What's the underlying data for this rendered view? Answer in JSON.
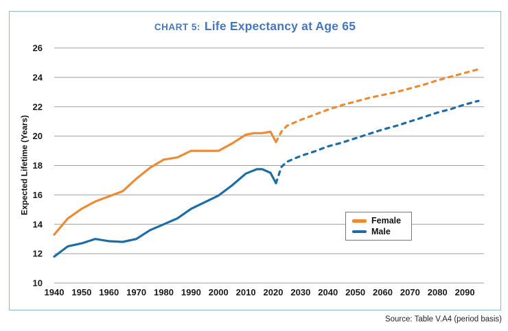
{
  "title": {
    "prefix": "CHART 5:",
    "main": "Life Expectancy at Age 65"
  },
  "source_note": "Source: Table V.A4 (period basis)",
  "colors": {
    "female_line": "#EC8B33",
    "male_line": "#1C6DA6",
    "title_text": "#4677BD",
    "frame_border": "#8DB9CF",
    "gridline": "#9E9E9E",
    "legend_border": "#777777",
    "axis_text": "#1A1A1A"
  },
  "chart_data": {
    "type": "line",
    "title": "CHART 5: Life Expectancy at Age 65",
    "xlabel": "",
    "ylabel": "Expected Lifetime (Years)",
    "ylim": [
      10,
      26
    ],
    "xlim": [
      1940,
      2097
    ],
    "y_ticks": [
      10,
      12,
      14,
      16,
      18,
      20,
      22,
      24,
      26
    ],
    "x_ticks": [
      1940,
      1950,
      1960,
      1970,
      1980,
      1990,
      2000,
      2010,
      2020,
      2030,
      2040,
      2050,
      2060,
      2070,
      2080,
      2090
    ],
    "grid": "horizontal-only",
    "legend_position": "inside-center-right",
    "line_style_note": "solid = historical data, dashed = projected",
    "series": [
      {
        "name": "Female",
        "color": "#EC8B33",
        "historical": [
          [
            1940,
            13.3
          ],
          [
            1945,
            14.4
          ],
          [
            1950,
            15.05
          ],
          [
            1955,
            15.55
          ],
          [
            1960,
            15.9
          ],
          [
            1965,
            16.25
          ],
          [
            1970,
            17.1
          ],
          [
            1975,
            17.85
          ],
          [
            1980,
            18.4
          ],
          [
            1985,
            18.55
          ],
          [
            1990,
            19.0
          ],
          [
            1995,
            19.0
          ],
          [
            2000,
            19.0
          ],
          [
            2005,
            19.5
          ],
          [
            2010,
            20.1
          ],
          [
            2013,
            20.2
          ],
          [
            2016,
            20.2
          ],
          [
            2019,
            20.3
          ],
          [
            2021,
            19.6
          ]
        ],
        "projected": [
          [
            2021,
            19.6
          ],
          [
            2023,
            20.3
          ],
          [
            2025,
            20.7
          ],
          [
            2030,
            21.1
          ],
          [
            2035,
            21.45
          ],
          [
            2040,
            21.8
          ],
          [
            2045,
            22.1
          ],
          [
            2050,
            22.35
          ],
          [
            2055,
            22.6
          ],
          [
            2060,
            22.8
          ],
          [
            2065,
            23.0
          ],
          [
            2070,
            23.25
          ],
          [
            2075,
            23.5
          ],
          [
            2080,
            23.8
          ],
          [
            2085,
            24.05
          ],
          [
            2090,
            24.3
          ],
          [
            2095,
            24.55
          ]
        ]
      },
      {
        "name": "Male",
        "color": "#1C6DA6",
        "historical": [
          [
            1940,
            11.8
          ],
          [
            1945,
            12.5
          ],
          [
            1950,
            12.7
          ],
          [
            1955,
            13.0
          ],
          [
            1960,
            12.85
          ],
          [
            1965,
            12.8
          ],
          [
            1970,
            13.0
          ],
          [
            1975,
            13.6
          ],
          [
            1980,
            14.0
          ],
          [
            1985,
            14.4
          ],
          [
            1990,
            15.05
          ],
          [
            1995,
            15.5
          ],
          [
            2000,
            15.95
          ],
          [
            2005,
            16.65
          ],
          [
            2010,
            17.45
          ],
          [
            2014,
            17.75
          ],
          [
            2016,
            17.75
          ],
          [
            2019,
            17.5
          ],
          [
            2021,
            16.8
          ]
        ],
        "projected": [
          [
            2021,
            16.8
          ],
          [
            2023,
            17.9
          ],
          [
            2025,
            18.25
          ],
          [
            2030,
            18.65
          ],
          [
            2035,
            18.95
          ],
          [
            2040,
            19.3
          ],
          [
            2045,
            19.55
          ],
          [
            2050,
            19.85
          ],
          [
            2055,
            20.15
          ],
          [
            2060,
            20.45
          ],
          [
            2065,
            20.7
          ],
          [
            2070,
            21.0
          ],
          [
            2075,
            21.3
          ],
          [
            2080,
            21.6
          ],
          [
            2085,
            21.85
          ],
          [
            2090,
            22.15
          ],
          [
            2095,
            22.4
          ]
        ]
      }
    ]
  }
}
